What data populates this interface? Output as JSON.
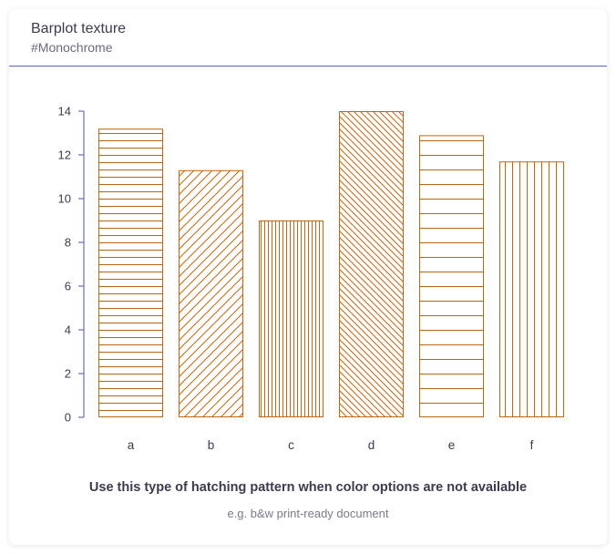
{
  "header": {
    "title": "Barplot texture",
    "subtitle": "#Monochrome"
  },
  "footer": {
    "caption": "Use this type of hatching pattern when color options are not available",
    "note": "e.g. b&w print-ready document"
  },
  "colors": {
    "bar_stroke": "#c0660d",
    "axis": "#4a54b0",
    "text": "#3b3b4f"
  },
  "chart_data": {
    "type": "bar",
    "title": "Barplot texture",
    "subtitle": "#Monochrome",
    "categories": [
      "a",
      "b",
      "c",
      "d",
      "e",
      "f"
    ],
    "values": [
      13.2,
      11.3,
      9.0,
      14.0,
      12.9,
      11.7
    ],
    "patterns": [
      "horizontal",
      "diagonal-up",
      "vertical",
      "diagonal-down",
      "horizontal-wide",
      "vertical-wide"
    ],
    "ylim": [
      0,
      14
    ],
    "yticks": [
      0,
      2,
      4,
      6,
      8,
      10,
      12,
      14
    ],
    "xlabel": "",
    "ylabel": "",
    "grid": false
  }
}
